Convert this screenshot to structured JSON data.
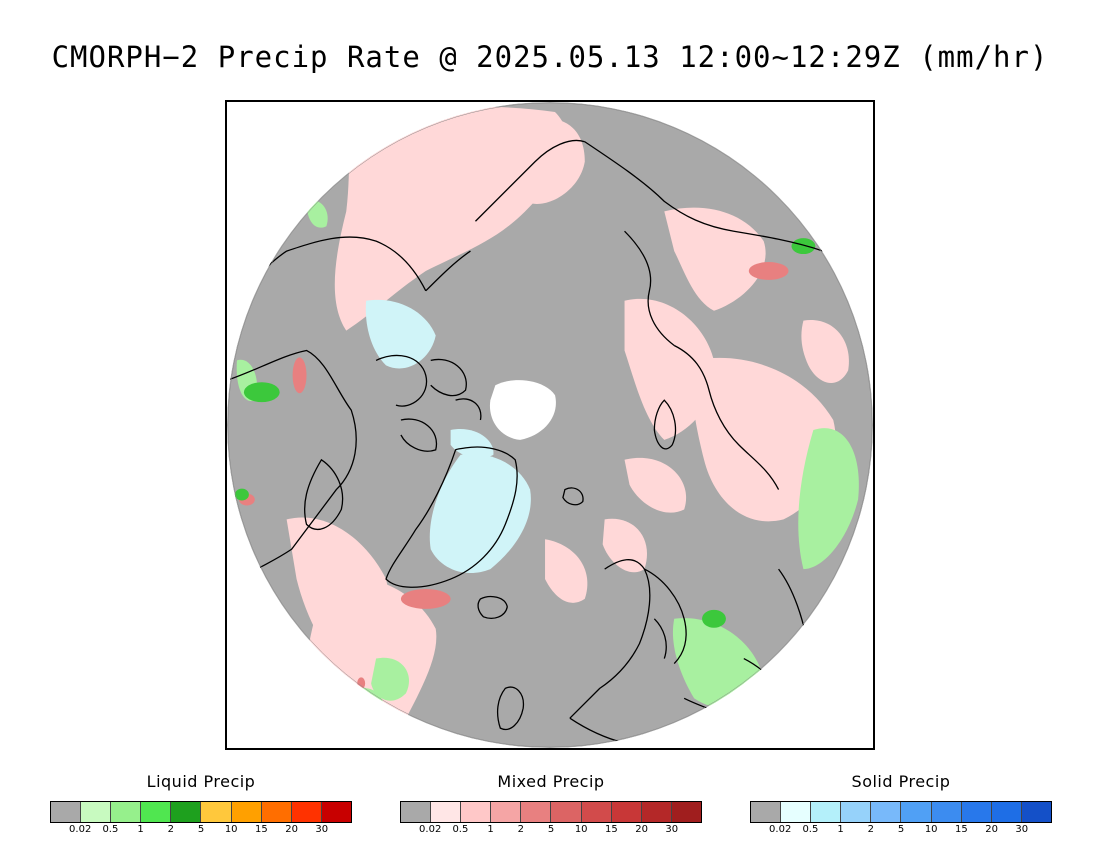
{
  "title": "CMORPH−2 Precip Rate @ 2025.05.13 12:00~12:29Z (mm/hr)",
  "map": {
    "projection": "north-polar-stereographic",
    "colors": {
      "no_precip": "#a9a9a9",
      "mixed_light": "#ffd8d8",
      "mixed_medium": "#e88080",
      "liquid_light": "#a8f0a0",
      "liquid_medium": "#3cc83c",
      "solid_light": "#d0f4f8",
      "no_data": "#ffffff",
      "coastline": "#000000"
    }
  },
  "legends": [
    {
      "title": "Liquid Precip",
      "colors": [
        "#a9a9a9",
        "#c8fac0",
        "#96f08c",
        "#50e650",
        "#1ea01e",
        "#ffc83c",
        "#ffa000",
        "#ff6e00",
        "#ff3200",
        "#c80000"
      ],
      "ticks": [
        "0.02",
        "0.5",
        "1",
        "2",
        "5",
        "10",
        "15",
        "20",
        "30"
      ]
    },
    {
      "title": "Mixed Precip",
      "colors": [
        "#a9a9a9",
        "#ffe6e6",
        "#ffc8c8",
        "#f5a5a5",
        "#e88080",
        "#dc6464",
        "#d24b4b",
        "#c83737",
        "#b42828",
        "#a01e1e"
      ],
      "ticks": [
        "0.02",
        "0.5",
        "1",
        "2",
        "5",
        "10",
        "15",
        "20",
        "30"
      ]
    },
    {
      "title": "Solid Precip",
      "colors": [
        "#a9a9a9",
        "#e6ffff",
        "#b4f0fa",
        "#96d2fa",
        "#78b9fa",
        "#50a0f5",
        "#3c8cf0",
        "#2878eb",
        "#1e6ee6",
        "#1450c8"
      ],
      "ticks": [
        "0.02",
        "0.5",
        "1",
        "2",
        "5",
        "10",
        "15",
        "20",
        "30"
      ]
    }
  ]
}
